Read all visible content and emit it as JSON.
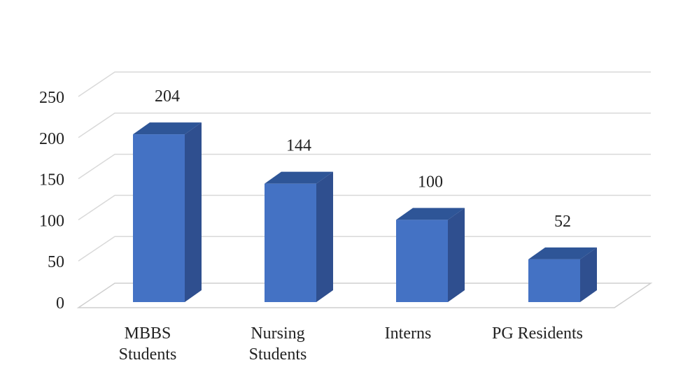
{
  "chart_data": {
    "type": "bar",
    "style": "3d-column",
    "categories": [
      [
        "MBBS",
        "Students"
      ],
      [
        "Nursing",
        "Students"
      ],
      [
        "Interns"
      ],
      [
        "PG Residents"
      ]
    ],
    "values": [
      204,
      144,
      100,
      52
    ],
    "data_labels": [
      "204",
      "144",
      "100",
      "52"
    ],
    "title": "",
    "xlabel": "",
    "ylabel": "",
    "ylim": [
      0,
      250
    ],
    "yticks": [
      0,
      50,
      100,
      150,
      200,
      250
    ],
    "grid": true,
    "legend": "none",
    "colors": {
      "front": "#4472c4",
      "side": "#2f4f8f",
      "top": "#2e5597"
    }
  }
}
